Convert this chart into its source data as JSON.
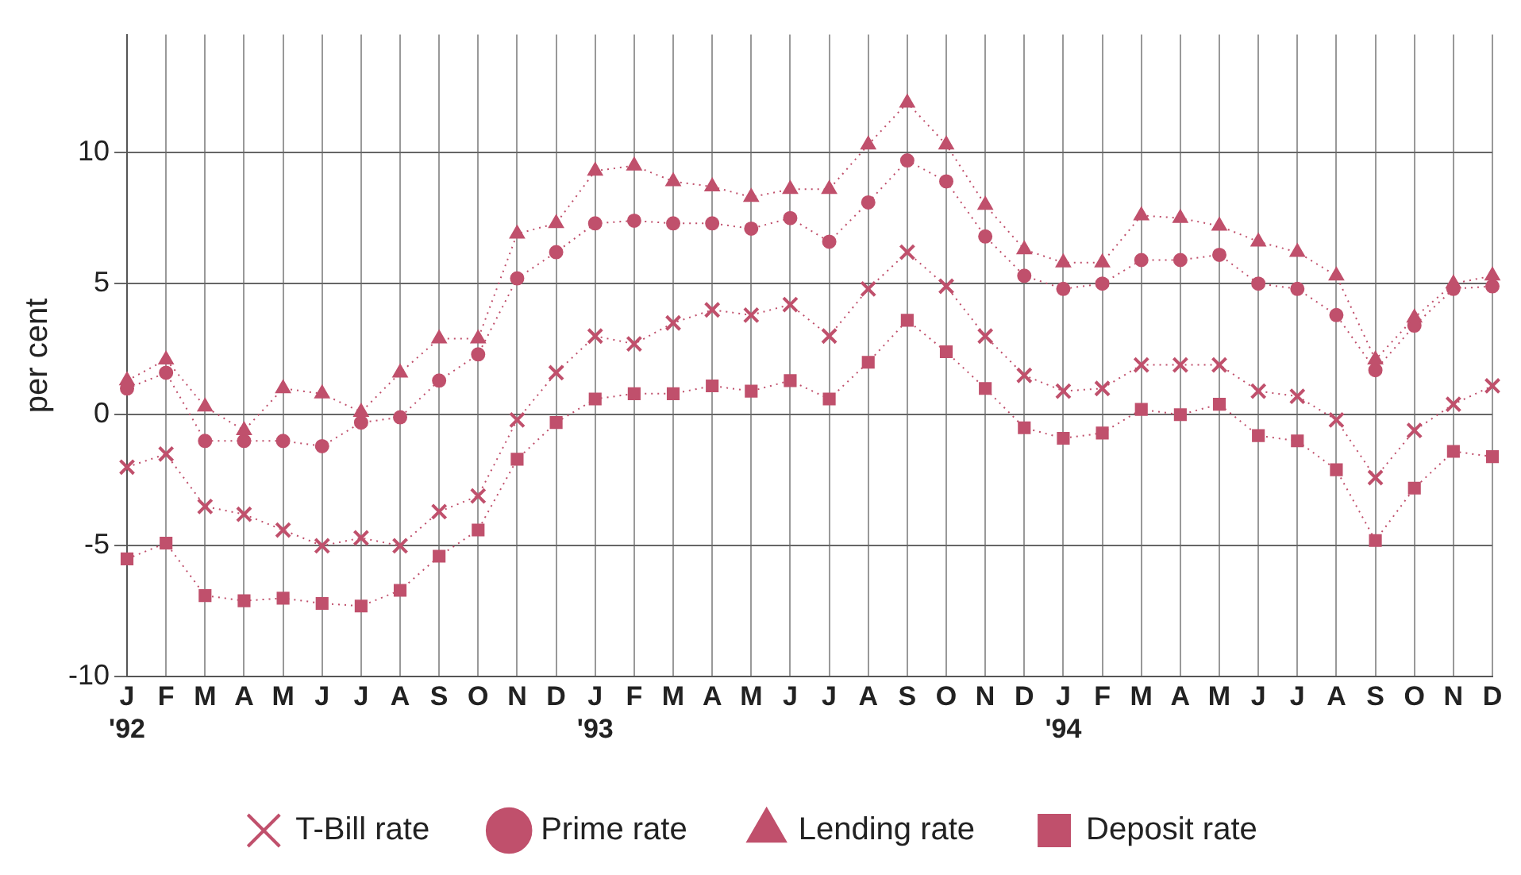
{
  "chart_data": {
    "type": "line",
    "ylabel": "per cent",
    "categories": [
      "J\n'92",
      "F",
      "M",
      "A",
      "M",
      "J",
      "J",
      "A",
      "S",
      "O",
      "N",
      "D",
      "J\n'93",
      "F",
      "M",
      "A",
      "M",
      "J",
      "J",
      "A",
      "S",
      "O",
      "N",
      "D",
      "J\n'94",
      "F",
      "M",
      "A",
      "M",
      "J",
      "J",
      "A",
      "S",
      "O",
      "N",
      "D"
    ],
    "ylim": [
      -10,
      14.5
    ],
    "yticks": [
      -10,
      -5,
      0,
      5,
      10
    ],
    "grid": true,
    "legend": "bottom",
    "line_style": "dotted",
    "series": [
      {
        "name": "T-Bill rate",
        "color": "#c0506c",
        "marker": "cross",
        "values": [
          -2.0,
          -1.5,
          -3.5,
          -3.8,
          -4.4,
          -5.0,
          -4.7,
          -5.0,
          -3.7,
          -3.1,
          -0.2,
          1.6,
          3.0,
          2.7,
          3.5,
          4.0,
          3.8,
          4.2,
          3.0,
          4.8,
          6.2,
          4.9,
          3.0,
          1.5,
          0.9,
          1.0,
          1.9,
          1.9,
          1.9,
          0.9,
          0.7,
          -0.2,
          -2.4,
          -0.6,
          0.4,
          1.1
        ]
      },
      {
        "name": "Prime rate",
        "color": "#c0506c",
        "marker": "circle",
        "values": [
          1.0,
          1.6,
          -1.0,
          -1.0,
          -1.0,
          -1.2,
          -0.3,
          -0.1,
          1.3,
          2.3,
          5.2,
          6.2,
          7.3,
          7.4,
          7.3,
          7.3,
          7.1,
          7.5,
          6.6,
          8.1,
          9.7,
          8.9,
          6.8,
          5.3,
          4.8,
          5.0,
          5.9,
          5.9,
          6.1,
          5.0,
          4.8,
          3.8,
          1.7,
          3.4,
          4.8,
          4.9
        ]
      },
      {
        "name": "Lending rate",
        "color": "#c0506c",
        "marker": "triangle",
        "values": [
          1.3,
          2.1,
          0.3,
          -0.6,
          1.0,
          0.8,
          0.1,
          1.6,
          2.9,
          2.9,
          6.9,
          7.3,
          9.3,
          9.5,
          8.9,
          8.7,
          8.3,
          8.6,
          8.6,
          10.3,
          11.9,
          10.3,
          8.0,
          6.3,
          5.8,
          5.8,
          7.6,
          7.5,
          7.2,
          6.6,
          6.2,
          5.3,
          2.1,
          3.7,
          5.0,
          5.3
        ]
      },
      {
        "name": "Deposit rate",
        "color": "#c0506c",
        "marker": "square",
        "values": [
          -5.5,
          -4.9,
          -6.9,
          -7.1,
          -7.0,
          -7.2,
          -7.3,
          -6.7,
          -5.4,
          -4.4,
          -1.7,
          -0.3,
          0.6,
          0.8,
          0.8,
          1.1,
          0.9,
          1.3,
          0.6,
          2.0,
          3.6,
          2.4,
          1.0,
          -0.5,
          -0.9,
          -0.7,
          0.2,
          0.0,
          0.4,
          -0.8,
          -1.0,
          -2.1,
          -4.8,
          -2.8,
          -1.4,
          -1.6
        ]
      }
    ]
  }
}
